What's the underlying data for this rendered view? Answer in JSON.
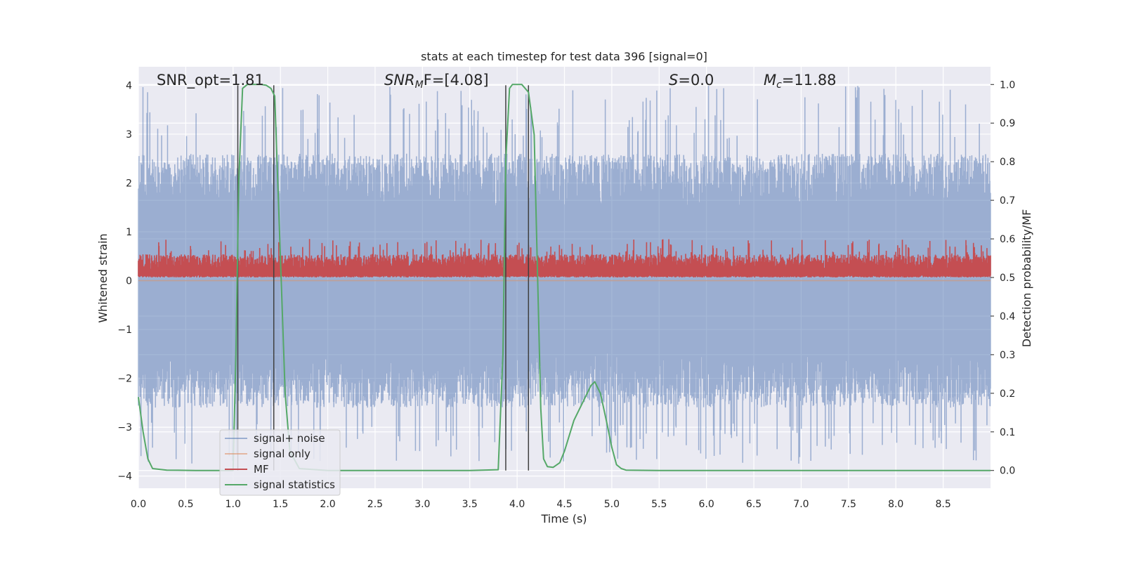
{
  "chart_data": {
    "type": "line",
    "title": "stats at each timestep for test data 396 [signal=0]",
    "xlabel": "Time (s)",
    "ylabel": "Whitened strain",
    "ylabel_right": "Detection probability/MF",
    "xlim": [
      0,
      9.0
    ],
    "ylim": [
      -4.25,
      4.38
    ],
    "ylim_right": [
      -0.046,
      1.046
    ],
    "x_ticks": [
      "0.0",
      "0.5",
      "1.0",
      "1.5",
      "2.0",
      "2.5",
      "3.0",
      "3.5",
      "4.0",
      "4.5",
      "5.0",
      "5.5",
      "6.0",
      "6.5",
      "7.0",
      "7.5",
      "8.0",
      "8.5"
    ],
    "y_ticks": [
      "4",
      "3",
      "2",
      "1",
      "0",
      "−1",
      "−2",
      "−3",
      "−4"
    ],
    "y_ticks_right": [
      "1.0",
      "0.9",
      "0.8",
      "0.7",
      "0.6",
      "0.5",
      "0.4",
      "0.3",
      "0.2",
      "0.1",
      "0.0"
    ],
    "grid": true,
    "legend_position": "lower-left",
    "annotations": {
      "snr_opt": "SNR_opt=1.81",
      "snr_mf_name": "SNR",
      "snr_mf_sub": "M",
      "snr_mf_rest": "F=[4.08]",
      "s_name": "S",
      "s_rest": "=0.0",
      "mc_name": "M",
      "mc_sub": "c",
      "mc_rest": "=11.88"
    },
    "series": [
      {
        "name": "signal+ noise",
        "color": "#4c72b0",
        "alpha": 0.5,
        "axis": "left",
        "kind": "noise",
        "envelope_low": -2.6,
        "envelope_high": 2.6,
        "peak_max": 4.0,
        "trough_min": -3.75
      },
      {
        "name": "signal only",
        "color": "#dd8452",
        "alpha": 0.5,
        "axis": "left",
        "kind": "flat",
        "values": [
          0
        ]
      },
      {
        "name": "MF",
        "color": "#c44e52",
        "axis": "right",
        "kind": "noise",
        "envelope_low": 0.5,
        "envelope_high": 0.56,
        "peak_max": 0.6
      },
      {
        "name": "signal statistics",
        "color": "#55a868",
        "axis": "right",
        "kind": "line",
        "x": [
          0.0,
          0.05,
          0.1,
          0.15,
          0.3,
          0.6,
          1.0,
          1.03,
          1.06,
          1.1,
          1.15,
          1.2,
          1.3,
          1.35,
          1.4,
          1.44,
          1.5,
          1.55,
          1.6,
          1.7,
          2.0,
          3.0,
          3.5,
          3.8,
          3.85,
          3.88,
          3.92,
          3.95,
          4.05,
          4.12,
          4.18,
          4.25,
          4.28,
          4.32,
          4.38,
          4.45,
          4.5,
          4.6,
          4.7,
          4.78,
          4.82,
          4.88,
          4.95,
          5.0,
          5.05,
          5.1,
          5.15,
          5.5,
          9.0
        ],
        "values": [
          0.19,
          0.1,
          0.03,
          0.005,
          0.001,
          0.0,
          0.0,
          0.3,
          0.75,
          0.99,
          1.0,
          1.0,
          1.0,
          0.998,
          0.99,
          0.97,
          0.55,
          0.2,
          0.05,
          0.005,
          0.0,
          0.0,
          0.0,
          0.002,
          0.3,
          0.8,
          0.99,
          1.0,
          1.0,
          0.98,
          0.87,
          0.16,
          0.03,
          0.01,
          0.008,
          0.02,
          0.05,
          0.13,
          0.18,
          0.22,
          0.23,
          0.2,
          0.12,
          0.06,
          0.015,
          0.005,
          0.001,
          0.0,
          0.0
        ]
      },
      {
        "name": "",
        "color": "#404040",
        "axis": "left",
        "kind": "vlines",
        "x": [
          1.05,
          1.43,
          3.88,
          4.12
        ]
      }
    ]
  }
}
